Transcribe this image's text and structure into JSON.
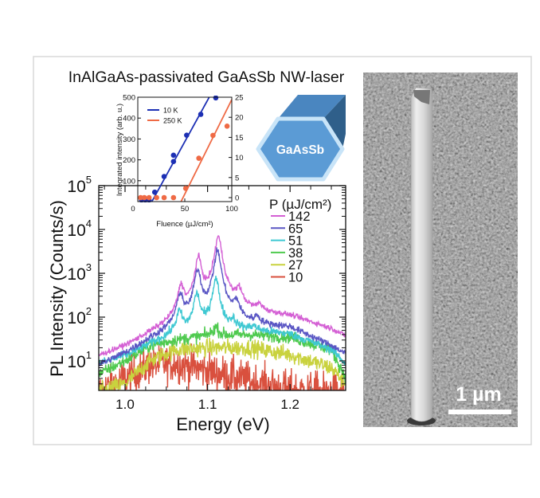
{
  "title": "InAlGaAs-passivated GaAsSb NW-laser",
  "chart_data": [
    {
      "type": "line",
      "title": "InAlGaAs-passivated GaAsSb NW-laser",
      "xlabel": "Energy (eV)",
      "ylabel": "PL Intensity (Counts/s)",
      "xlim": [
        0.968,
        1.268
      ],
      "ylim": [
        2.1,
        112000
      ],
      "yscale": "log",
      "xticks": [
        "1.0",
        "1.1",
        "1.2"
      ],
      "xtick_values": [
        1.0,
        1.1,
        1.2
      ],
      "yticks": [
        {
          "base": "10",
          "exp": "1"
        },
        {
          "base": "10",
          "exp": "2"
        },
        {
          "base": "10",
          "exp": "3"
        },
        {
          "base": "10",
          "exp": "4"
        },
        {
          "base": "10",
          "exp": "5"
        }
      ],
      "legend_title": "P (µJ/cm²)",
      "legend_position": "right",
      "baseline_energies": [
        0.968,
        1.0,
        1.03,
        1.06,
        1.1,
        1.15,
        1.2,
        1.25,
        1.268
      ],
      "series": [
        {
          "name": "142",
          "color": "#d45fd4",
          "noise": 0.03,
          "baseline": [
            7,
            12,
            25,
            45,
            110,
            120,
            100,
            50,
            32
          ],
          "peaks": [
            [
              1.068,
              500
            ],
            [
              1.089,
              2300
            ],
            [
              1.113,
              7000
            ],
            [
              1.138,
              400
            ],
            [
              1.163,
              170
            ]
          ]
        },
        {
          "name": "65",
          "color": "#5a56c4",
          "noise": 0.04,
          "baseline": [
            5,
            10,
            22,
            40,
            55,
            60,
            55,
            20,
            12
          ],
          "peaks": [
            [
              1.067,
              330
            ],
            [
              1.088,
              1200
            ],
            [
              1.112,
              3300
            ],
            [
              1.135,
              200
            ],
            [
              1.16,
              90
            ]
          ]
        },
        {
          "name": "51",
          "color": "#3ec8d2",
          "noise": 0.05,
          "baseline": [
            8,
            12,
            22,
            38,
            45,
            50,
            40,
            18,
            8
          ],
          "peaks": [
            [
              1.066,
              130
            ],
            [
              1.087,
              340
            ],
            [
              1.11,
              750
            ],
            [
              1.131,
              80
            ],
            [
              1.156,
              60
            ]
          ]
        },
        {
          "name": "38",
          "color": "#4fca4f",
          "noise": 0.07,
          "baseline": [
            5,
            10,
            22,
            30,
            38,
            40,
            35,
            18,
            4
          ],
          "peaks": [
            [
              1.11,
              60
            ]
          ]
        },
        {
          "name": "27",
          "color": "#c9d23e",
          "noise": 0.1,
          "baseline": [
            2,
            3,
            10,
            18,
            20,
            20,
            14,
            7,
            3
          ],
          "peaks": []
        },
        {
          "name": "10",
          "color": "#d9503e",
          "noise": 0.22,
          "baseline": [
            2,
            4,
            8,
            9,
            6,
            3.5,
            2.2,
            2,
            2
          ],
          "peaks": []
        }
      ]
    },
    {
      "type": "scatter",
      "xlabel": "Fluence (µJ/cm²)",
      "ylabel": "Integrated intensity (arb. u.)",
      "xlim": [
        0,
        100
      ],
      "ylim_left": [
        0,
        500
      ],
      "ylim_right": [
        -1,
        25
      ],
      "xticks": [
        "0",
        "50",
        "100"
      ],
      "yticks_left": [
        "100",
        "200",
        "300",
        "400",
        "500"
      ],
      "yticks_right": [
        "0",
        "5",
        "10",
        "15",
        "20",
        "25"
      ],
      "legend_position": "top-left",
      "series": [
        {
          "name": "10 K",
          "color": "#1c2fb4",
          "axis": "left",
          "points": [
            [
              4,
              5
            ],
            [
              8,
              5
            ],
            [
              12,
              5
            ],
            [
              18,
              45
            ],
            [
              28,
              120
            ],
            [
              38,
              192
            ],
            [
              38,
              222
            ],
            [
              52,
              318
            ],
            [
              67,
              418
            ],
            [
              83,
              497
            ]
          ],
          "fit": [
            [
              15,
              0
            ],
            [
              76,
              500
            ]
          ]
        },
        {
          "name": "250 K",
          "color": "#ef6a45",
          "axis": "right",
          "points": [
            [
              3,
              0
            ],
            [
              7,
              0
            ],
            [
              12,
              0
            ],
            [
              20,
              0
            ],
            [
              28,
              0
            ],
            [
              38,
              0
            ],
            [
              51,
              2.3
            ],
            [
              65,
              9.8
            ],
            [
              80,
              15.5
            ],
            [
              95,
              17.8
            ]
          ],
          "fit": [
            [
              46,
              -1
            ],
            [
              100,
              24.4
            ]
          ]
        }
      ]
    }
  ],
  "schematic": {
    "label": "GaAsSb",
    "face_color": "#5b9bd5",
    "top_color": "#4a86c0",
    "side_color": "#2f5f8a",
    "rim_color": "#c8e4f8"
  },
  "sem_image": {
    "scale_bar_label": "1 µm"
  }
}
